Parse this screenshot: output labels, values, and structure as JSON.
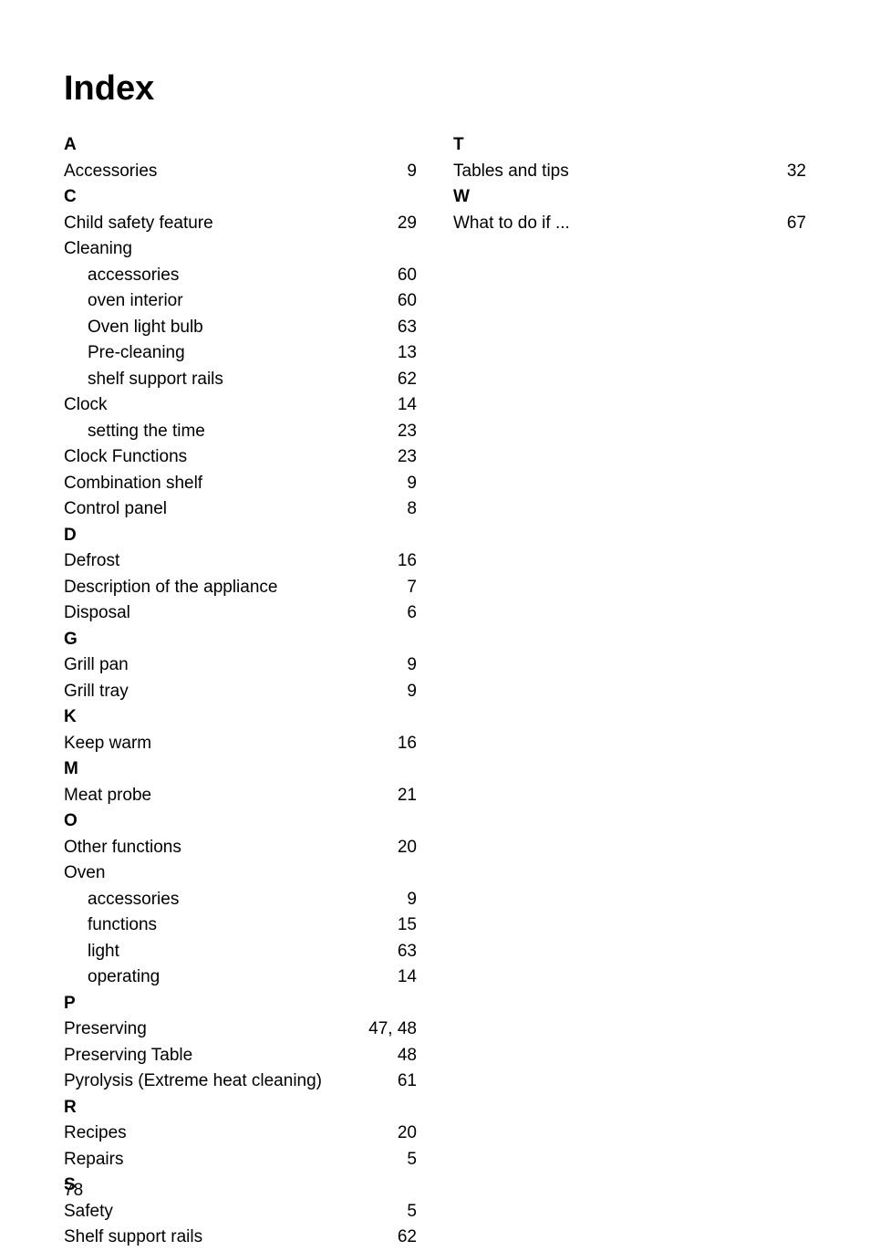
{
  "title": "Index",
  "pageNumber": "78",
  "colors": {
    "text": "#000000",
    "background": "#ffffff"
  },
  "typography": {
    "titleFontSize": 38,
    "bodyFontSize": 19,
    "titleWeight": "bold",
    "letterWeight": "bold"
  },
  "col1": {
    "letterA": "A",
    "accessories": {
      "label": "Accessories",
      "page": "9"
    },
    "letterC": "C",
    "childSafety": {
      "label": "Child safety feature",
      "page": "29"
    },
    "cleaning": {
      "label": "Cleaning"
    },
    "cleaningAccessories": {
      "label": "accessories",
      "page": "60"
    },
    "ovenInterior": {
      "label": "oven interior",
      "page": "60"
    },
    "ovenLightBulb": {
      "label": "Oven light bulb",
      "page": "63"
    },
    "preCleaning": {
      "label": "Pre-cleaning",
      "page": "13"
    },
    "shelfSupportRailsSub": {
      "label": "shelf support rails",
      "page": "62"
    },
    "clock": {
      "label": "Clock",
      "page": "14"
    },
    "settingTime": {
      "label": "setting the time",
      "page": "23"
    },
    "clockFunctions": {
      "label": "Clock Functions",
      "page": "23"
    },
    "combinationShelf": {
      "label": "Combination shelf",
      "page": "9"
    },
    "controlPanel": {
      "label": "Control panel",
      "page": "8"
    },
    "letterD": "D",
    "defrost": {
      "label": "Defrost",
      "page": "16"
    },
    "description": {
      "label": "Description of the appliance",
      "page": "7"
    },
    "disposal": {
      "label": "Disposal",
      "page": "6"
    },
    "letterG": "G",
    "grillPan": {
      "label": "Grill pan",
      "page": "9"
    },
    "grillTray": {
      "label": "Grill tray",
      "page": "9"
    },
    "letterK": "K",
    "keepWarm": {
      "label": "Keep warm",
      "page": "16"
    },
    "letterM": "M",
    "meatProbe": {
      "label": "Meat probe",
      "page": "21"
    },
    "letterO": "O",
    "otherFunctions": {
      "label": "Other functions",
      "page": "20"
    },
    "oven": {
      "label": "Oven"
    },
    "ovenAccessories": {
      "label": "accessories",
      "page": "9"
    },
    "ovenFunctions": {
      "label": "functions",
      "page": "15"
    },
    "ovenLight": {
      "label": "light",
      "page": "63"
    },
    "ovenOperating": {
      "label": "operating",
      "page": "14"
    },
    "letterP": "P",
    "preserving": {
      "label": "Preserving",
      "page": "47, 48"
    },
    "preservingTable": {
      "label": "Preserving Table",
      "page": "48"
    },
    "pyrolysis": {
      "label": "Pyrolysis (Extreme heat cleaning)",
      "page": "61"
    },
    "letterR": "R",
    "recipes": {
      "label": "Recipes",
      "page": "20"
    },
    "repairs": {
      "label": "Repairs",
      "page": "5"
    },
    "letterS": "S",
    "safety": {
      "label": "Safety",
      "page": "5"
    },
    "shelfSupportRails": {
      "label": "Shelf support rails",
      "page": "62"
    }
  },
  "col2": {
    "letterT": "T",
    "tablesAndTips": {
      "label": "Tables and tips",
      "page": "32"
    },
    "letterW": "W",
    "whatToDoIf": {
      "label": "What to do if ...",
      "page": "67"
    }
  }
}
